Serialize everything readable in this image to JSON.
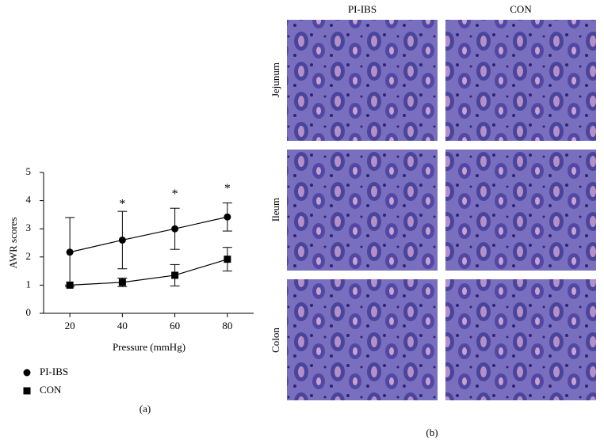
{
  "chart_data": {
    "type": "line",
    "x_label": "Pressure (mmHg)",
    "y_label": "AWR scores",
    "x": [
      20,
      40,
      60,
      80
    ],
    "series": [
      {
        "name": "PI-IBS",
        "color": "#000000",
        "marker": "circle",
        "values": [
          2.17,
          2.6,
          3.0,
          3.42
        ],
        "errors": [
          1.23,
          1.02,
          0.73,
          0.5
        ]
      },
      {
        "name": "CON",
        "color": "#000000",
        "marker": "square",
        "values": [
          1.0,
          1.1,
          1.35,
          1.92
        ],
        "errors": [
          0,
          0.15,
          0.38,
          0.42
        ]
      }
    ],
    "annotations": [
      {
        "x": 40,
        "y": 3.85,
        "text": "*"
      },
      {
        "x": 60,
        "y": 4.2,
        "text": "*"
      },
      {
        "x": 80,
        "y": 4.4,
        "text": "*"
      }
    ],
    "xlim": [
      10,
      90
    ],
    "xticks": [
      20,
      40,
      60,
      80
    ],
    "ylim": [
      0,
      5
    ],
    "yticks": [
      0,
      1,
      2,
      3,
      4,
      5
    ],
    "grid": false,
    "legend": "bottom-left"
  },
  "panel_labels": [
    "(a)",
    "(b)"
  ],
  "histology": {
    "columns": [
      "PI-IBS",
      "CON"
    ],
    "rows": [
      "Jejunum",
      "Ileum",
      "Colon"
    ]
  }
}
